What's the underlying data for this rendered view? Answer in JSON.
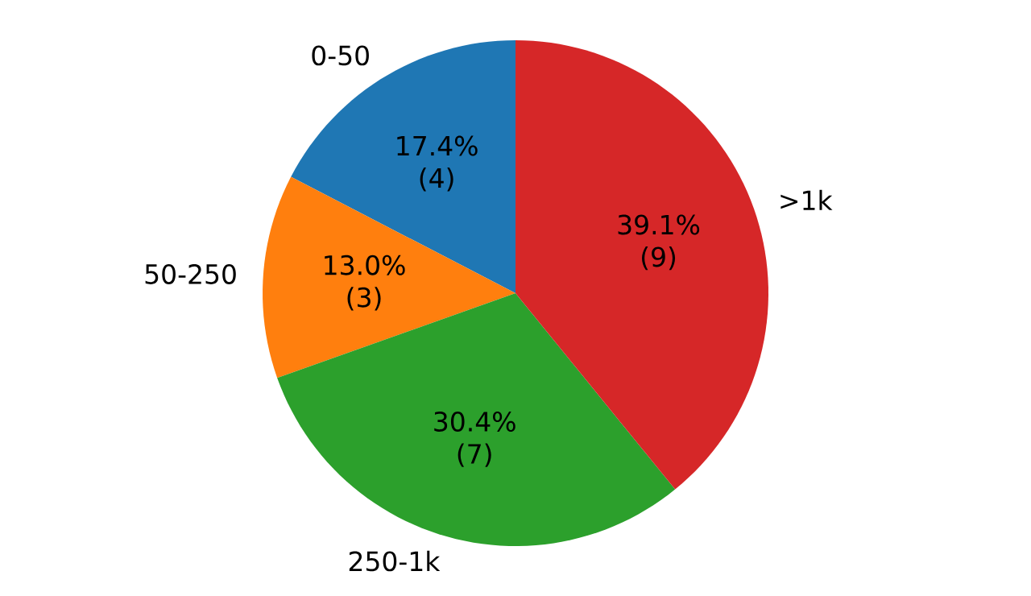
{
  "chart_data": {
    "type": "pie",
    "categories": [
      "0-50",
      "50-250",
      "250-1k",
      ">1k"
    ],
    "values": [
      4,
      3,
      7,
      9
    ],
    "colors": [
      "#1f77b4",
      "#ff7f0e",
      "#2ca02c",
      "#d62728"
    ],
    "value_labels": [
      "17.4% (4)",
      "13.0% (3)",
      "30.4% (7)",
      "39.1% (9)"
    ]
  }
}
